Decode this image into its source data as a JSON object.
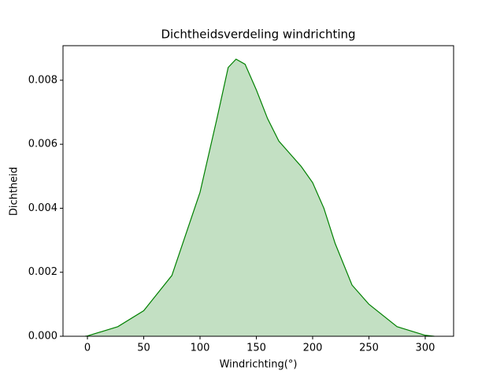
{
  "chart_data": {
    "type": "area",
    "title": "Dichtheidsverdeling windrichting",
    "x_label": "Windrichting(°)",
    "y_label": "Dichtheid",
    "x": [
      -2,
      0,
      27,
      50,
      75,
      100,
      115,
      125,
      132,
      140,
      150,
      160,
      170,
      180,
      190,
      200,
      210,
      220,
      235,
      250,
      275,
      300,
      308
    ],
    "series": [
      {
        "name": "Windrichting",
        "color": "#008000",
        "fill": "#c3e0c3",
        "values": [
          0,
          1e-05,
          0.0003,
          0.0008,
          0.0019,
          0.0045,
          0.0068,
          0.0084,
          0.00866,
          0.0085,
          0.0077,
          0.0068,
          0.0061,
          0.0057,
          0.0053,
          0.0048,
          0.004,
          0.0029,
          0.0016,
          0.001,
          0.0003,
          3e-05,
          0
        ]
      }
    ],
    "xlim": [
      -21.7,
      325.2
    ],
    "ylim": [
      0,
      0.00908
    ],
    "xticks": [
      0,
      50,
      100,
      150,
      200,
      250,
      300
    ],
    "yticks": [
      {
        "value": 0,
        "label": "0.000"
      },
      {
        "value": 0.002,
        "label": "0.002"
      },
      {
        "value": 0.004,
        "label": "0.004"
      },
      {
        "value": 0.006,
        "label": "0.006"
      },
      {
        "value": 0.008,
        "label": "0.008"
      }
    ],
    "grid": false
  }
}
